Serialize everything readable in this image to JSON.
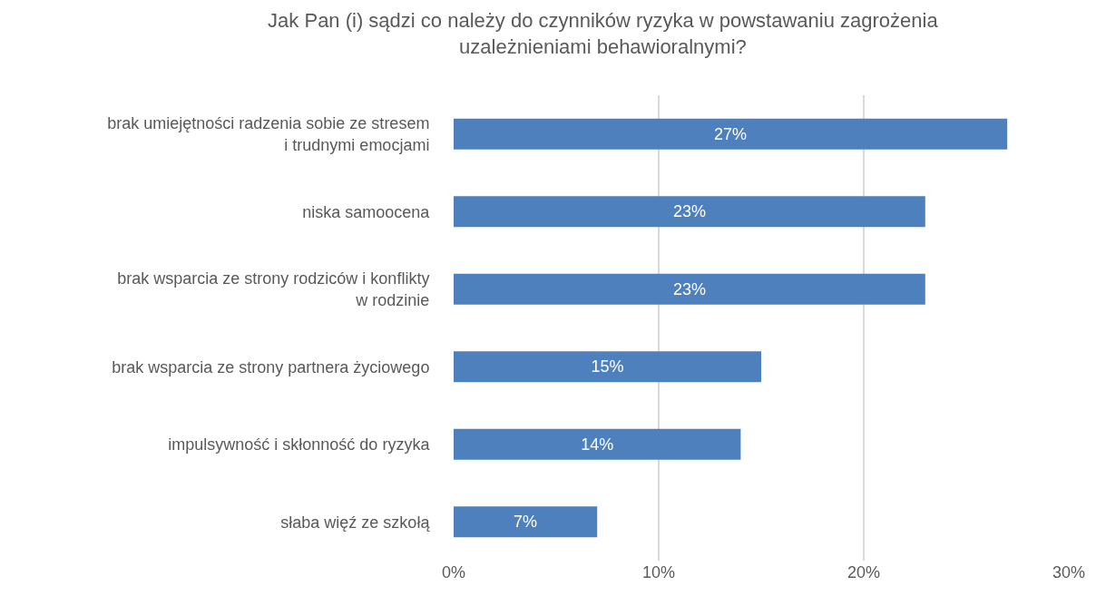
{
  "chart_data": {
    "type": "bar",
    "orientation": "horizontal",
    "title": "Jak Pan (i) sądzi co należy do czynników ryzyka w powstawaniu zagrożenia\nuzależnieniami behawioralnymi?",
    "categories": [
      "brak umiejętności radzenia sobie ze stresem\ni trudnymi emocjami",
      "niska samoocena",
      "brak wsparcia ze strony rodziców i konflikty\nw rodzinie",
      "brak wsparcia ze strony partnera życiowego",
      "impulsywność i skłonność do ryzyka",
      "słaba więź ze szkołą"
    ],
    "values": [
      27,
      23,
      23,
      15,
      14,
      7
    ],
    "value_labels": [
      "27%",
      "23%",
      "23%",
      "15%",
      "14%",
      "7%"
    ],
    "color": "#4e80bd",
    "xlim": [
      0,
      30
    ],
    "xticks": [
      {
        "value": 0,
        "label": "0%"
      },
      {
        "value": 10,
        "label": "10%"
      },
      {
        "value": 20,
        "label": "20%"
      },
      {
        "value": 30,
        "label": "30%"
      }
    ],
    "grid": "x",
    "legend": false
  }
}
